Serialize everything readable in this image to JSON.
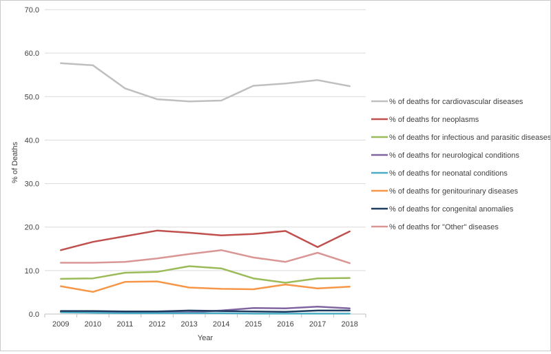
{
  "chart_data": {
    "type": "line",
    "title": "",
    "xlabel": "Year",
    "ylabel": "% of Deaths",
    "ylim": [
      0,
      70
    ],
    "ytick_labels": [
      "0.0",
      "10.0",
      "20.0",
      "30.0",
      "40.0",
      "50.0",
      "60.0",
      "70.0"
    ],
    "grid": "horizontal",
    "legend_position": "right",
    "categories": [
      "2009",
      "2010",
      "2011",
      "2012",
      "2013",
      "2014",
      "2015",
      "2016",
      "2017",
      "2018"
    ],
    "series": [
      {
        "name": "% of deaths for cardiovascular diseases",
        "color": "#bfbfbf",
        "values": [
          57.7,
          57.2,
          51.9,
          49.4,
          48.9,
          49.1,
          52.5,
          53.0,
          53.8,
          52.4
        ]
      },
      {
        "name": "% of deaths for neoplasms",
        "color": "#c0504d",
        "values": [
          14.7,
          16.6,
          17.9,
          19.2,
          18.7,
          18.1,
          18.4,
          19.1,
          15.4,
          19.0
        ]
      },
      {
        "name": "% of deaths for infectious and parasitic diseases",
        "color": "#9bbb59",
        "values": [
          8.1,
          8.2,
          9.5,
          9.7,
          11.0,
          10.5,
          8.2,
          7.2,
          8.2,
          8.3
        ]
      },
      {
        "name": "% of deaths for neurological conditions",
        "color": "#8064a2",
        "values": [
          0.5,
          0.4,
          0.4,
          0.4,
          0.4,
          0.8,
          1.4,
          1.3,
          1.7,
          1.3
        ]
      },
      {
        "name": "% of deaths for neonatal conditions",
        "color": "#4bacc6",
        "values": [
          0.4,
          0.3,
          0.2,
          0.2,
          0.2,
          0.2,
          0.1,
          0.1,
          0.1,
          0.1
        ]
      },
      {
        "name": "% of deaths for genitourinary diseases",
        "color": "#f79646",
        "values": [
          6.4,
          5.1,
          7.4,
          7.5,
          6.1,
          5.8,
          5.7,
          6.8,
          5.9,
          6.3
        ]
      },
      {
        "name": "% of deaths for congenital anomalies",
        "color": "#1f3a5f",
        "values": [
          0.7,
          0.7,
          0.6,
          0.6,
          0.8,
          0.7,
          0.6,
          0.5,
          0.8,
          0.8
        ]
      },
      {
        "name": "% of deaths for \"Other\" diseases",
        "color": "#d99694",
        "values": [
          11.8,
          11.8,
          12.0,
          12.8,
          13.8,
          14.7,
          13.0,
          12.0,
          14.1,
          11.7
        ]
      }
    ]
  }
}
